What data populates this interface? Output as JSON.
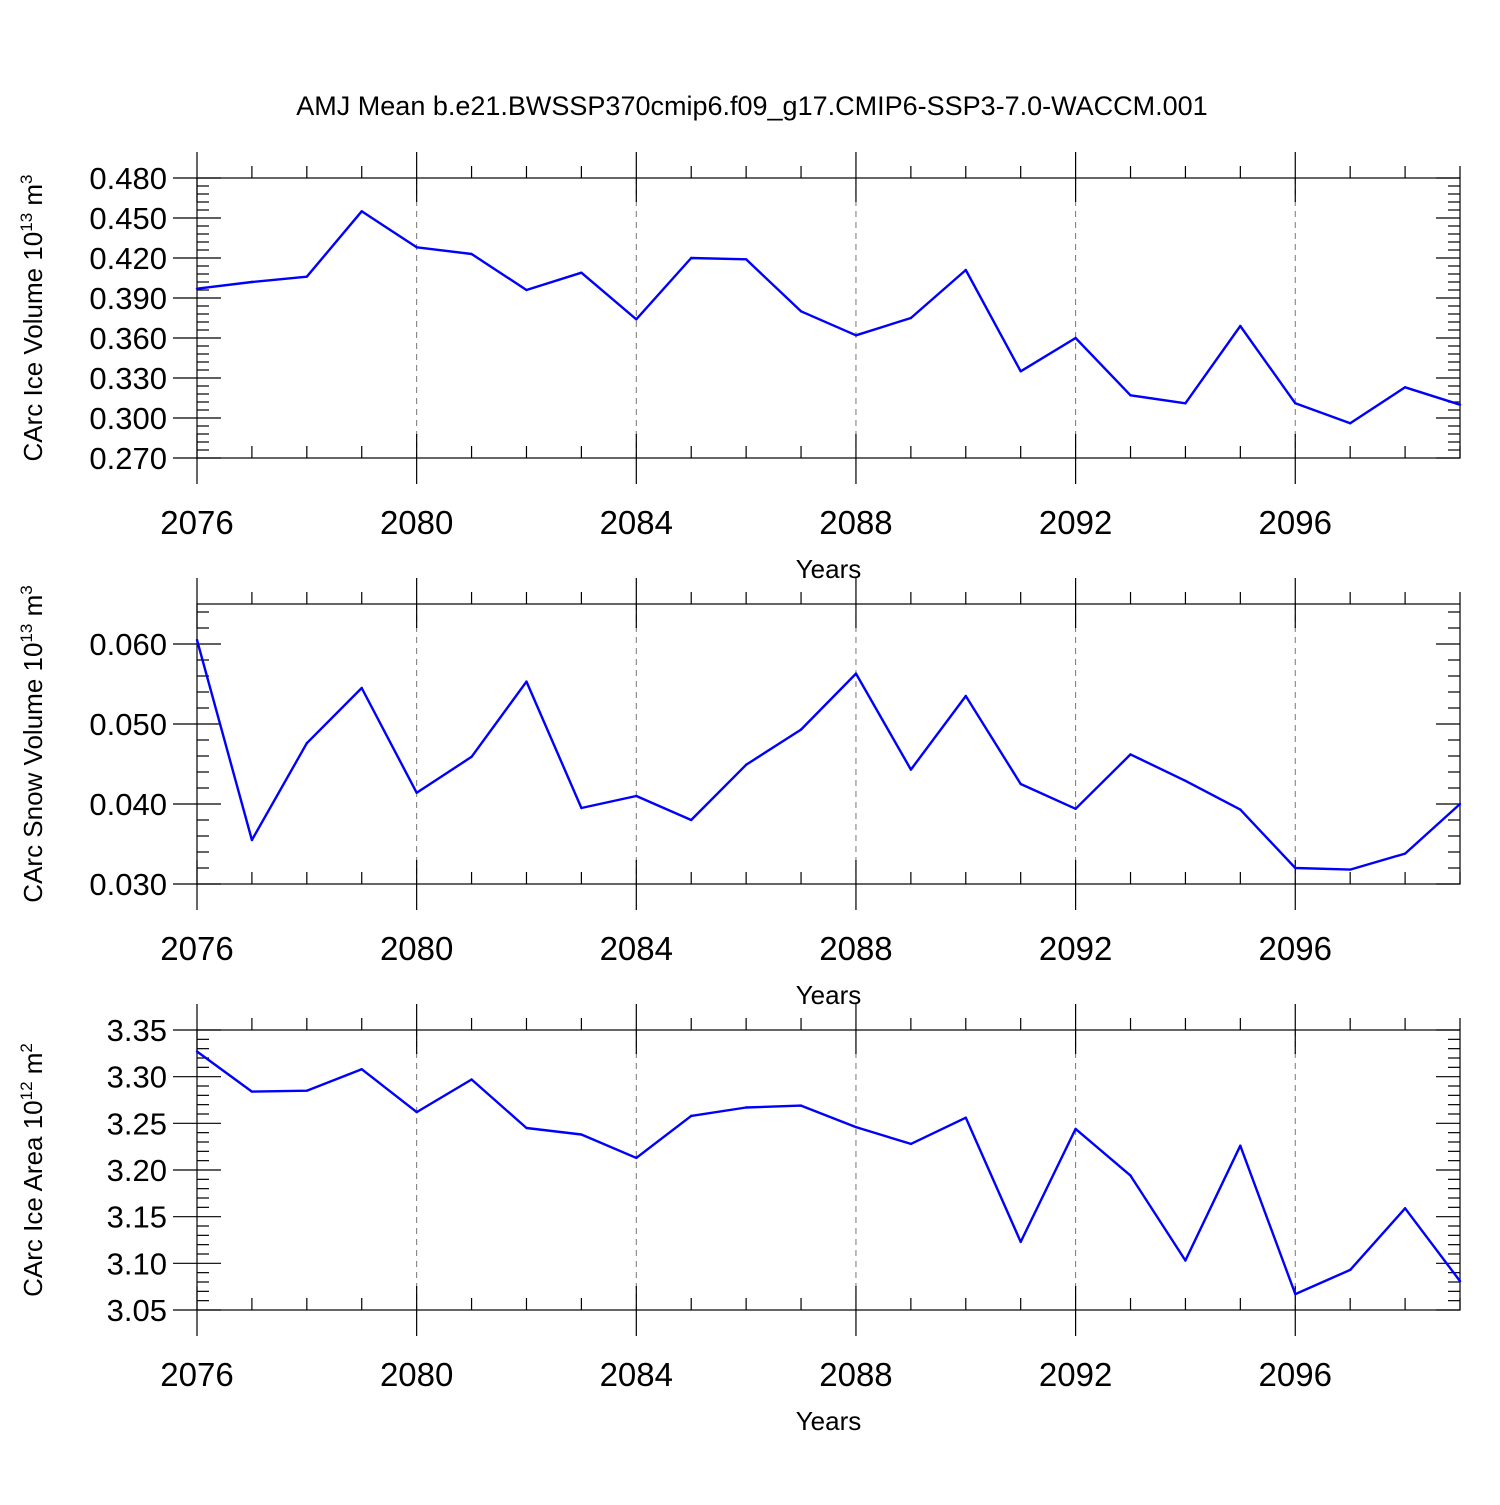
{
  "title": "AMJ Mean b.e21.BWSSP370cmip6.f09_g17.CMIP6-SSP3-7.0-WACCM.001",
  "colors": {
    "line": "#0000ff",
    "axis": "#000000",
    "grid": "#777777"
  },
  "chart_data": [
    {
      "type": "line",
      "ylabel_main": "CArc Ice Volume 10",
      "ylabel_sup": "13",
      "ylabel_unit": " m",
      "ylabel_unit_sup": "3",
      "xlabel": "Years",
      "xlim": [
        2076,
        2099
      ],
      "ylim": [
        0.27,
        0.48
      ],
      "xticks": [
        "2076",
        "2080",
        "2084",
        "2088",
        "2092",
        "2096"
      ],
      "yticks": [
        "0.270",
        "0.300",
        "0.330",
        "0.360",
        "0.390",
        "0.420",
        "0.450",
        "0.480"
      ],
      "x": [
        2076,
        2077,
        2078,
        2079,
        2080,
        2081,
        2082,
        2083,
        2084,
        2085,
        2086,
        2087,
        2088,
        2089,
        2090,
        2091,
        2092,
        2093,
        2094,
        2095,
        2096,
        2097,
        2098,
        2099
      ],
      "values": [
        0.397,
        0.402,
        0.406,
        0.455,
        0.428,
        0.423,
        0.396,
        0.409,
        0.374,
        0.42,
        0.419,
        0.38,
        0.362,
        0.375,
        0.411,
        0.335,
        0.36,
        0.317,
        0.311,
        0.369,
        0.311,
        0.296,
        0.323,
        0.31
      ]
    },
    {
      "type": "line",
      "ylabel_main": "CArc Snow Volume 10",
      "ylabel_sup": "13",
      "ylabel_unit": " m",
      "ylabel_unit_sup": "3",
      "xlabel": "Years",
      "xlim": [
        2076,
        2099
      ],
      "ylim": [
        0.03,
        0.065
      ],
      "xticks": [
        "2076",
        "2080",
        "2084",
        "2088",
        "2092",
        "2096"
      ],
      "yticks": [
        "0.030",
        "0.040",
        "0.050",
        "0.060"
      ],
      "x": [
        2076,
        2077,
        2078,
        2079,
        2080,
        2081,
        2082,
        2083,
        2084,
        2085,
        2086,
        2087,
        2088,
        2089,
        2090,
        2091,
        2092,
        2093,
        2094,
        2095,
        2096,
        2097,
        2098,
        2099
      ],
      "values": [
        0.0605,
        0.0355,
        0.0476,
        0.0545,
        0.0414,
        0.0459,
        0.0553,
        0.0395,
        0.041,
        0.038,
        0.0449,
        0.0493,
        0.0563,
        0.0443,
        0.0535,
        0.0425,
        0.0394,
        0.0462,
        0.0429,
        0.0393,
        0.032,
        0.0318,
        0.0338,
        0.04
      ]
    },
    {
      "type": "line",
      "ylabel_main": "CArc Ice Area 10",
      "ylabel_sup": "12",
      "ylabel_unit": " m",
      "ylabel_unit_sup": "2",
      "xlabel": "Years",
      "xlim": [
        2076,
        2099
      ],
      "ylim": [
        3.05,
        3.35
      ],
      "xticks": [
        "2076",
        "2080",
        "2084",
        "2088",
        "2092",
        "2096"
      ],
      "yticks": [
        "3.05",
        "3.10",
        "3.15",
        "3.20",
        "3.25",
        "3.30",
        "3.35"
      ],
      "x": [
        2076,
        2077,
        2078,
        2079,
        2080,
        2081,
        2082,
        2083,
        2084,
        2085,
        2086,
        2087,
        2088,
        2089,
        2090,
        2091,
        2092,
        2093,
        2094,
        2095,
        2096,
        2097,
        2098,
        2099
      ],
      "values": [
        3.327,
        3.284,
        3.285,
        3.308,
        3.262,
        3.297,
        3.245,
        3.238,
        3.213,
        3.258,
        3.267,
        3.269,
        3.246,
        3.228,
        3.256,
        3.123,
        3.244,
        3.194,
        3.103,
        3.226,
        3.067,
        3.093,
        3.159,
        3.081
      ]
    }
  ]
}
